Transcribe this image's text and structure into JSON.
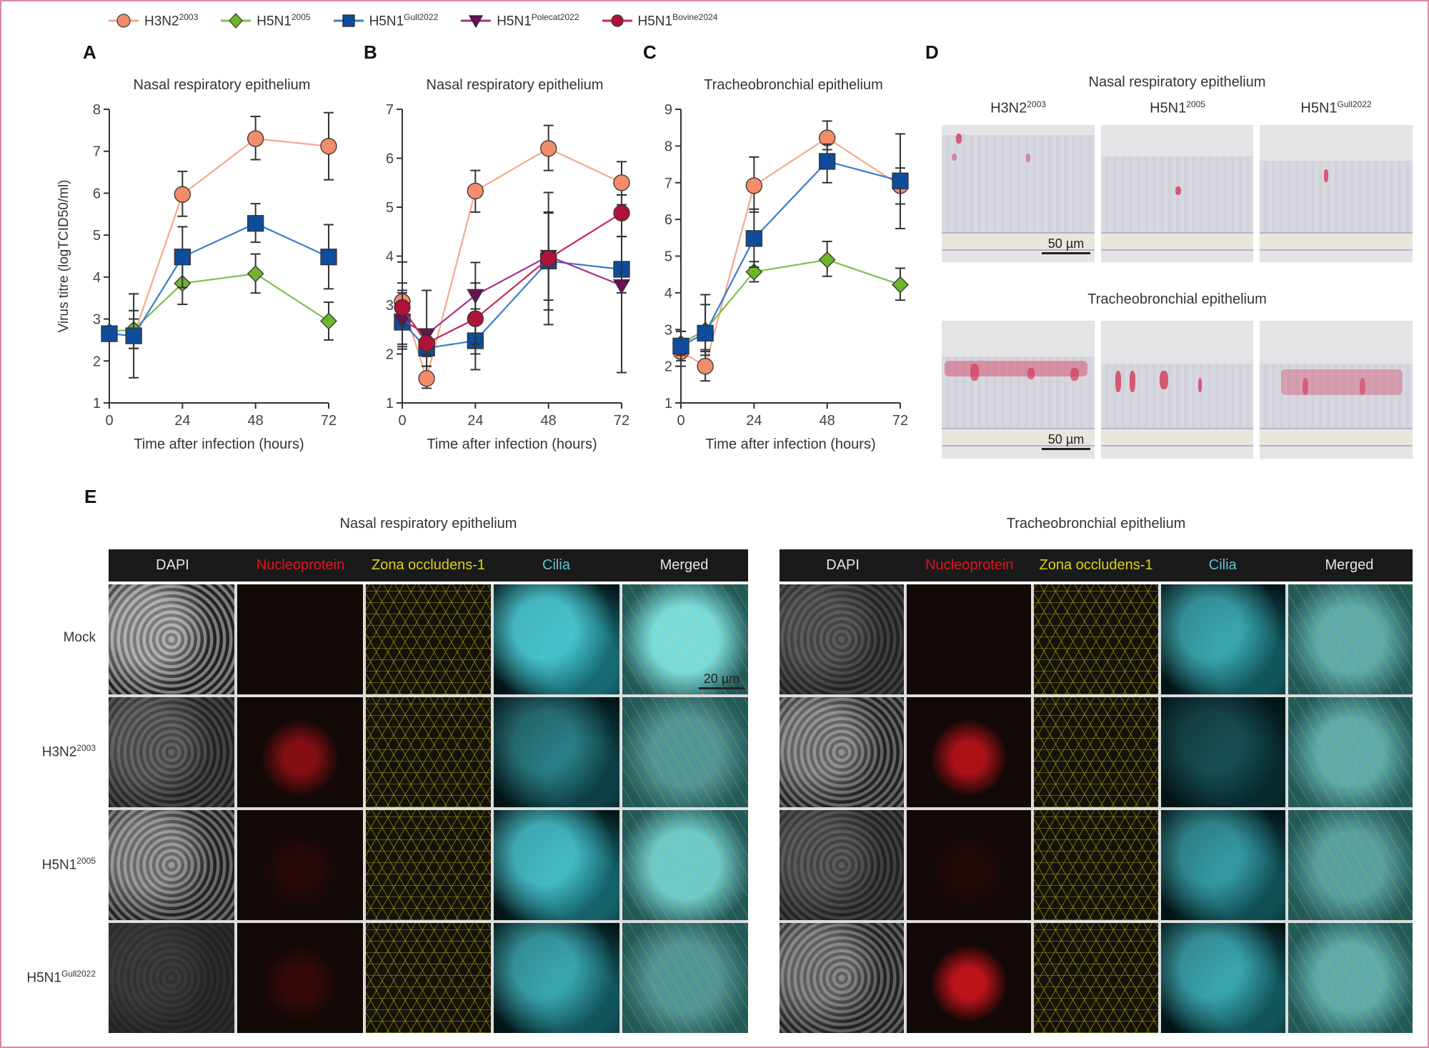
{
  "legend": [
    {
      "name": "H3N2",
      "sup": "2003",
      "color": "#f28c6a",
      "marker": "circle",
      "line": "#f5a98f"
    },
    {
      "name": "H5N1",
      "sup": "2005",
      "color": "#6fb52c",
      "marker": "diamond",
      "line": "#7cc04a"
    },
    {
      "name": "H5N1",
      "sup": "Gull2022",
      "color": "#0f4c9c",
      "marker": "square",
      "line": "#3a7cc8"
    },
    {
      "name": "H5N1",
      "sup": "Polecat2022",
      "color": "#6e0e56",
      "marker": "triangle-down",
      "line": "#a4318c"
    },
    {
      "name": "H5N1",
      "sup": "Bovine2024",
      "color": "#b0123a",
      "marker": "circle",
      "line": "#c32a56"
    }
  ],
  "panels": {
    "A": "A",
    "B": "B",
    "C": "C",
    "D": "D",
    "E": "E"
  },
  "chart_data": [
    {
      "type": "line",
      "panel": "A",
      "title": "Nasal respiratory epithelium",
      "xlabel": "Time after infection (hours)",
      "ylabel": "Virus titre (logTCID50/ml)",
      "x": [
        0,
        8,
        24,
        48,
        72
      ],
      "xticks": [
        0,
        24,
        48,
        72
      ],
      "ylim": [
        1,
        8
      ],
      "yticks": [
        1,
        2,
        3,
        4,
        5,
        6,
        7,
        8
      ],
      "series": [
        {
          "name": "H3N2 2003",
          "key": 0,
          "values": [
            2.65,
            2.6,
            5.97,
            7.3,
            7.12
          ],
          "err_low": [
            2.55,
            1.6,
            5.45,
            6.8,
            6.32
          ],
          "err_high": [
            2.75,
            3.6,
            6.52,
            7.83,
            7.92
          ]
        },
        {
          "name": "H5N1 2005",
          "key": 1,
          "values": [
            2.7,
            2.75,
            3.85,
            4.08,
            2.95
          ],
          "err_low": [
            2.65,
            2.3,
            3.35,
            3.62,
            2.5
          ],
          "err_high": [
            2.75,
            3.2,
            4.35,
            4.55,
            3.4
          ]
        },
        {
          "name": "H5N1 Gull2022",
          "key": 2,
          "values": [
            2.65,
            2.6,
            4.48,
            5.28,
            4.48
          ],
          "err_low": [
            2.6,
            2.3,
            3.75,
            4.83,
            3.72
          ],
          "err_high": [
            2.7,
            3.0,
            5.2,
            5.75,
            5.25
          ]
        }
      ]
    },
    {
      "type": "line",
      "panel": "B",
      "title": "Nasal respiratory epithelium",
      "xlabel": "Time after infection (hours)",
      "ylabel": "",
      "x": [
        0,
        8,
        24,
        48,
        72
      ],
      "xticks": [
        0,
        24,
        48,
        72
      ],
      "ylim": [
        1,
        7
      ],
      "yticks": [
        1,
        2,
        3,
        4,
        5,
        6,
        7
      ],
      "series": [
        {
          "name": "H3N2 2003",
          "key": 0,
          "values": [
            3.07,
            1.5,
            5.33,
            6.2,
            5.5
          ],
          "err_low": [
            2.85,
            1.3,
            4.9,
            5.75,
            5.05
          ],
          "err_high": [
            3.3,
            1.75,
            5.75,
            6.67,
            5.93
          ]
        },
        {
          "name": "H5N1 Gull2022",
          "key": 2,
          "values": [
            2.65,
            2.12,
            2.27,
            3.9,
            3.73
          ],
          "err_low": [
            2.1,
            1.95,
            2.0,
            2.9,
            3.25
          ],
          "err_high": [
            3.25,
            2.5,
            2.92,
            4.88,
            4.4
          ]
        },
        {
          "name": "H5N1 Polecat2022",
          "key": 3,
          "values": [
            2.7,
            2.4,
            3.2,
            4.0,
            3.4
          ],
          "err_low": [
            2.15,
            1.75,
            1.68,
            3.1,
            1.62
          ],
          "err_high": [
            3.45,
            3.3,
            3.87,
            5.3,
            5.25
          ]
        },
        {
          "name": "H5N1 Bovine2024",
          "key": 4,
          "values": [
            2.95,
            2.22,
            2.72,
            3.95,
            4.88
          ],
          "err_low": [
            2.2,
            2.0,
            2.2,
            2.6,
            4.4
          ],
          "err_high": [
            3.88,
            2.45,
            3.45,
            4.9,
            5.25
          ]
        }
      ]
    },
    {
      "type": "line",
      "panel": "C",
      "title": "Tracheobronchial epithelium",
      "xlabel": "Time after infection (hours)",
      "ylabel": "",
      "x": [
        0,
        8,
        24,
        48,
        72
      ],
      "xticks": [
        0,
        24,
        48,
        72
      ],
      "ylim": [
        1,
        9
      ],
      "yticks": [
        1,
        2,
        3,
        4,
        5,
        6,
        7,
        8,
        9
      ],
      "series": [
        {
          "name": "H3N2 2003",
          "key": 0,
          "values": [
            2.4,
            2.0,
            6.92,
            8.22,
            6.92
          ],
          "err_low": [
            2.0,
            1.6,
            6.2,
            7.9,
            5.75
          ],
          "err_high": [
            2.75,
            2.45,
            7.7,
            8.68,
            8.33
          ]
        },
        {
          "name": "H5N1 2005",
          "key": 1,
          "values": [
            2.62,
            2.98,
            4.57,
            4.9,
            4.22
          ],
          "err_low": [
            2.3,
            2.4,
            4.3,
            4.45,
            3.8
          ],
          "err_high": [
            2.95,
            3.95,
            4.85,
            5.4,
            4.67
          ]
        },
        {
          "name": "H5N1 Gull2022",
          "key": 2,
          "values": [
            2.55,
            2.9,
            5.48,
            7.58,
            7.05
          ],
          "err_low": [
            2.15,
            2.3,
            4.7,
            7.0,
            6.42
          ],
          "err_high": [
            2.95,
            3.68,
            6.28,
            8.05,
            7.4
          ]
        }
      ]
    }
  ],
  "panelD": {
    "rows": [
      {
        "title": "Nasal respiratory epithelium",
        "scale": "50 µm"
      },
      {
        "title": "Tracheobronchial epithelium",
        "scale": "50 µm"
      }
    ],
    "columns": [
      {
        "name": "H3N2",
        "sup": "2003"
      },
      {
        "name": "H5N1",
        "sup": "2005"
      },
      {
        "name": "H5N1",
        "sup": "Gull2022"
      }
    ]
  },
  "panelE": {
    "groups": [
      {
        "title": "Nasal respiratory epithelium",
        "scale": "20 µm"
      },
      {
        "title": "Tracheobronchial epithelium"
      }
    ],
    "channels": [
      {
        "label": "DAPI",
        "color": "#e6e6e6"
      },
      {
        "label": "Nucleoprotein",
        "color": "#e3141c"
      },
      {
        "label": "Zona occludens-1",
        "color": "#d9d21a"
      },
      {
        "label": "Cilia",
        "color": "#5cc4d8"
      },
      {
        "label": "Merged",
        "color": "#e6e6e6"
      }
    ],
    "rows": [
      {
        "name": "Mock",
        "sup": ""
      },
      {
        "name": "H3N2",
        "sup": "2003"
      },
      {
        "name": "H5N1",
        "sup": "2005"
      },
      {
        "name": "H5N1",
        "sup": "Gull2022"
      }
    ]
  }
}
